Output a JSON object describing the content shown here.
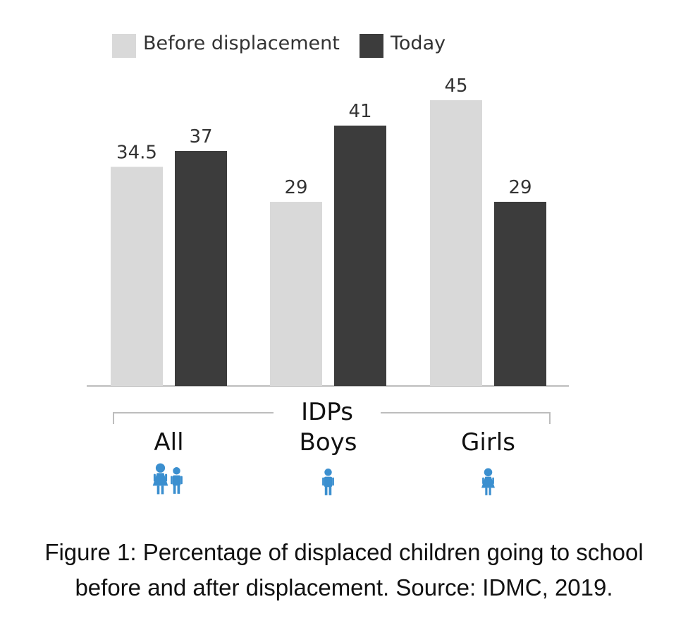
{
  "chart_data": {
    "type": "bar",
    "categories": [
      "All",
      "Boys",
      "Girls"
    ],
    "group_label": "IDPs",
    "series": [
      {
        "name": "Before displacement",
        "color": "#d9d9d9",
        "values": [
          34.5,
          29,
          45
        ],
        "labels": [
          "34.5",
          "29",
          "45"
        ]
      },
      {
        "name": "Today",
        "color": "#3c3c3c",
        "values": [
          37,
          41,
          29
        ],
        "labels": [
          "37",
          "41",
          "29"
        ]
      }
    ],
    "ylim": [
      0,
      50
    ],
    "grid": false,
    "legend_position": "top-left",
    "category_icons": [
      "boy-and-girl-icon",
      "boy-icon",
      "girl-icon"
    ],
    "icon_color": "#3b8fcf"
  },
  "caption": {
    "line1": "Figure 1: Percentage of displaced children going to school",
    "line2": "before and after displacement.  Source: IDMC, 2019."
  }
}
